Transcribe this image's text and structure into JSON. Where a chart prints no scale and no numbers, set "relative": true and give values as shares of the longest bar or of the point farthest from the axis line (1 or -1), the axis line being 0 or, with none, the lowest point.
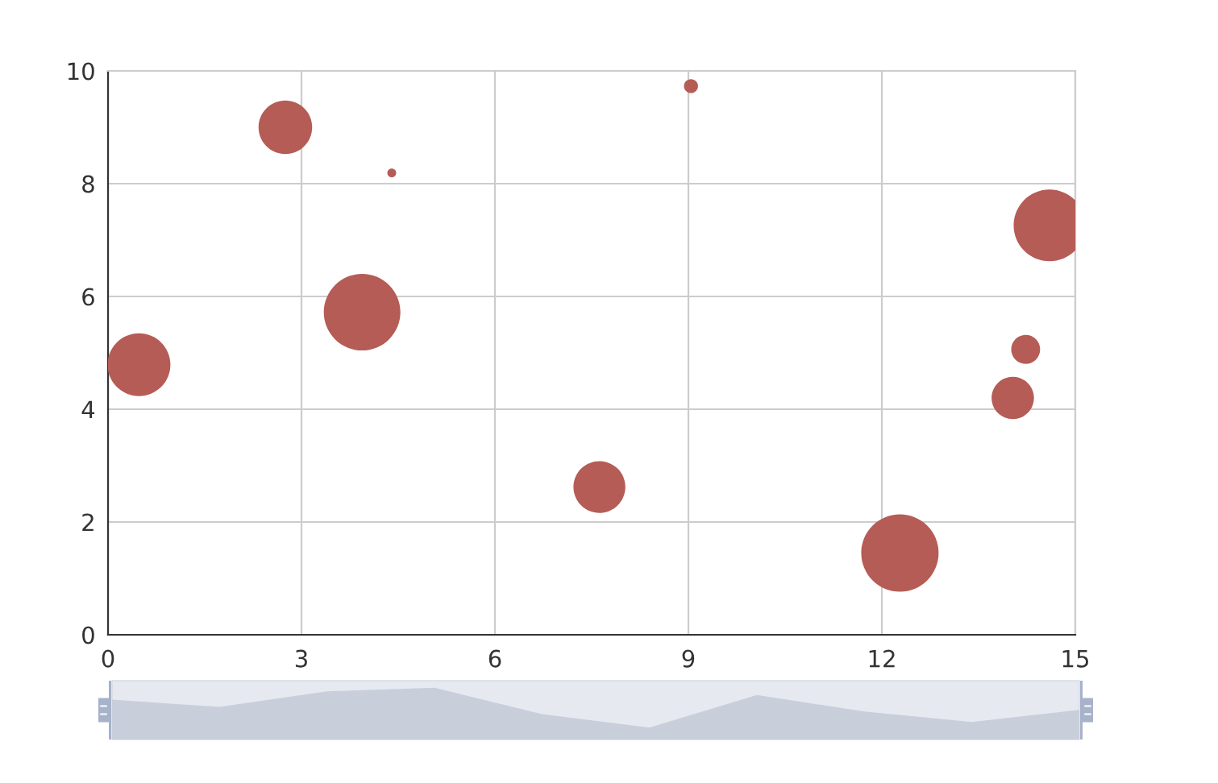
{
  "chart_data": [
    {
      "type": "bubble",
      "x": [
        14.6,
        3.94,
        2.75,
        9.04,
        14.03,
        12.28,
        4.4,
        0.48,
        7.62,
        14.23
      ],
      "values": [
        7.26,
        5.72,
        9.0,
        9.73,
        4.2,
        1.45,
        8.19,
        4.79,
        2.62,
        5.06
      ],
      "sizes": [
        0.86,
        0.98,
        0.48,
        0.033,
        0.3,
        1,
        0.013,
        0.66,
        0.45,
        0.14
      ],
      "color": "#b55c56",
      "marker": "circle",
      "xlim": [
        0,
        15
      ],
      "xticks": [
        0,
        3,
        6,
        9,
        12,
        15
      ],
      "ylim": [
        0,
        10
      ],
      "yticks": [
        0,
        2,
        4,
        6,
        8,
        10
      ],
      "grid": true
    },
    {
      "type": "area",
      "relative": true,
      "categories": [
        null,
        null,
        null,
        null,
        null,
        null,
        null,
        null,
        null,
        null
      ],
      "values": [
        0.77,
        0.63,
        0.93,
        1,
        0.49,
        0.23,
        0.86,
        0.54,
        0.34,
        0.57
      ],
      "color": "#c9cedb"
    }
  ]
}
